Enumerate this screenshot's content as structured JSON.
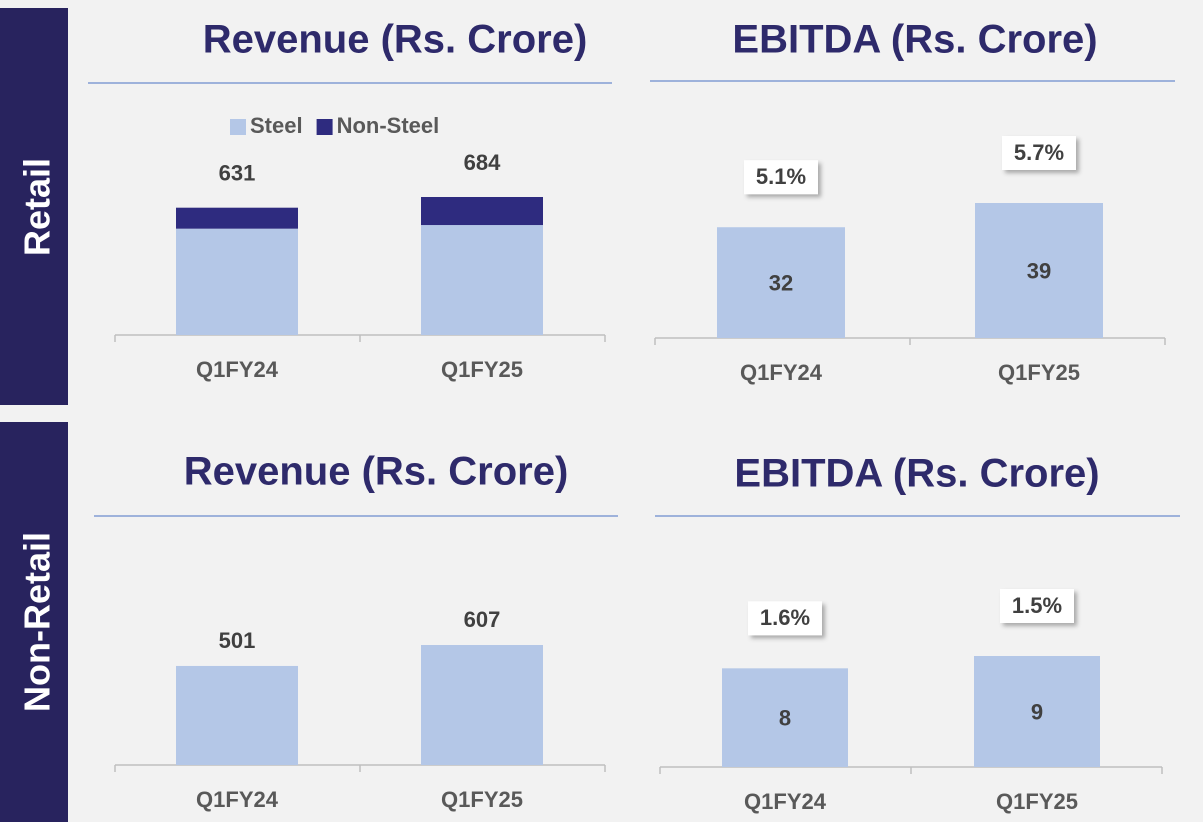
{
  "sections": [
    "Retail",
    "Non-Retail"
  ],
  "chart_data": [
    {
      "type": "stacked_bar",
      "title": "Revenue (Rs. Crore)",
      "categories": [
        "Q1FY24",
        "Q1FY25"
      ],
      "series": [
        {
          "name": "Steel",
          "color": "#b4c7e7",
          "values": [
            527,
            545
          ]
        },
        {
          "name": "Non-Steel",
          "color": "#2e2b7f",
          "values": [
            104,
            139
          ]
        }
      ],
      "totals": [
        631,
        684
      ]
    },
    {
      "type": "bar",
      "title": "EBITDA (Rs. Crore)",
      "categories": [
        "Q1FY24",
        "Q1FY25"
      ],
      "values": [
        32,
        39
      ],
      "color": "#b4c7e7",
      "margins": [
        5.1,
        5.7
      ],
      "margin_labels": [
        "5.1%",
        "5.7%"
      ]
    },
    {
      "type": "bar",
      "title": "Revenue (Rs. Crore)",
      "categories": [
        "Q1FY24",
        "Q1FY25"
      ],
      "values": [
        501,
        607
      ],
      "color": "#b4c7e7"
    },
    {
      "type": "bar",
      "title": "EBITDA (Rs. Crore)",
      "categories": [
        "Q1FY24",
        "Q1FY25"
      ],
      "values": [
        8,
        9
      ],
      "color": "#b4c7e7",
      "margins": [
        1.6,
        1.5
      ],
      "margin_labels": [
        "1.6%",
        "1.5%"
      ]
    }
  ]
}
